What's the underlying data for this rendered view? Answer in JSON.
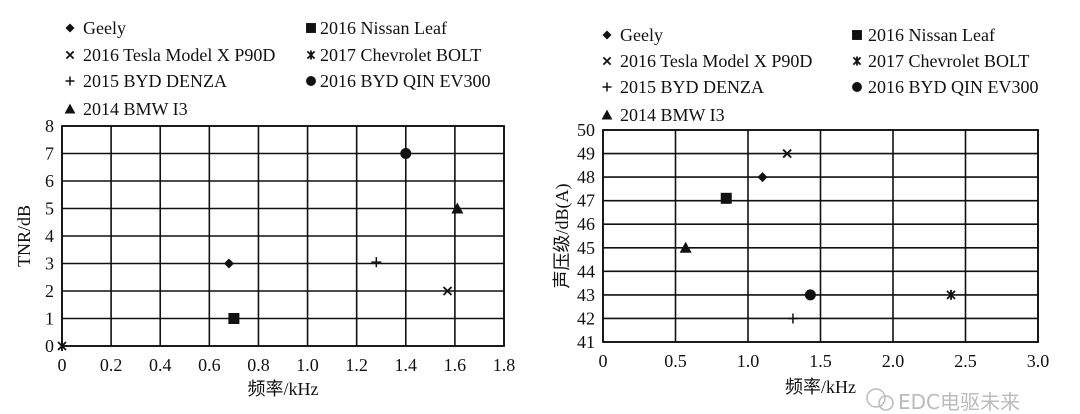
{
  "chart_data": [
    {
      "type": "scatter",
      "xlabel": "频率/kHz",
      "ylabel": "TNR/dB",
      "xlim": [
        0,
        1.8
      ],
      "ylim": [
        0,
        8
      ],
      "xticks": [
        "0",
        "0.2",
        "0.4",
        "0.6",
        "0.8",
        "1.0",
        "1.2",
        "1.4",
        "1.6",
        "1.8"
      ],
      "yticks": [
        "0",
        "1",
        "2",
        "3",
        "4",
        "5",
        "6",
        "7",
        "8"
      ],
      "grid": true,
      "legend_position": "top",
      "series": [
        {
          "name": "Geely",
          "marker": "diamond",
          "x": 0.68,
          "y": 3
        },
        {
          "name": "2016 Nissan Leaf",
          "marker": "square",
          "x": 0.7,
          "y": 1
        },
        {
          "name": "2016 Tesla Model X P90D",
          "marker": "x",
          "x": 1.57,
          "y": 2
        },
        {
          "name": "2017 Chevrolet BOLT",
          "marker": "asterisk",
          "x": 0,
          "y": 0
        },
        {
          "name": "2015 BYD DENZA",
          "marker": "plus",
          "x": 1.28,
          "y": 3.05
        },
        {
          "name": "2016 BYD QIN EV300",
          "marker": "circle",
          "x": 1.4,
          "y": 7
        },
        {
          "name": "2014 BMW I3",
          "marker": "triangle",
          "x": 1.61,
          "y": 5
        }
      ]
    },
    {
      "type": "scatter",
      "xlabel": "频率/kHz",
      "ylabel": "声压级/dB(A)",
      "xlim": [
        0,
        3.0
      ],
      "ylim": [
        41,
        50
      ],
      "xticks": [
        "0",
        "0.5",
        "1.0",
        "1.5",
        "2.0",
        "2.5",
        "3.0"
      ],
      "yticks": [
        "41",
        "42",
        "43",
        "44",
        "45",
        "46",
        "47",
        "48",
        "49",
        "50"
      ],
      "grid": true,
      "legend_position": "top",
      "series": [
        {
          "name": "Geely",
          "marker": "diamond",
          "x": 1.1,
          "y": 48
        },
        {
          "name": "2016 Nissan Leaf",
          "marker": "square",
          "x": 0.85,
          "y": 47.1
        },
        {
          "name": "2016 Tesla Model X P90D",
          "marker": "x",
          "x": 1.27,
          "y": 49
        },
        {
          "name": "2017 Chevrolet BOLT",
          "marker": "asterisk",
          "x": 2.4,
          "y": 43
        },
        {
          "name": "2015 BYD DENZA",
          "marker": "plus",
          "x": 1.31,
          "y": 42
        },
        {
          "name": "2016 BYD QIN EV300",
          "marker": "circle",
          "x": 1.43,
          "y": 43
        },
        {
          "name": "2014 BMW I3",
          "marker": "triangle",
          "x": 0.57,
          "y": 45
        }
      ]
    }
  ],
  "watermark": "EDC电驱未来"
}
